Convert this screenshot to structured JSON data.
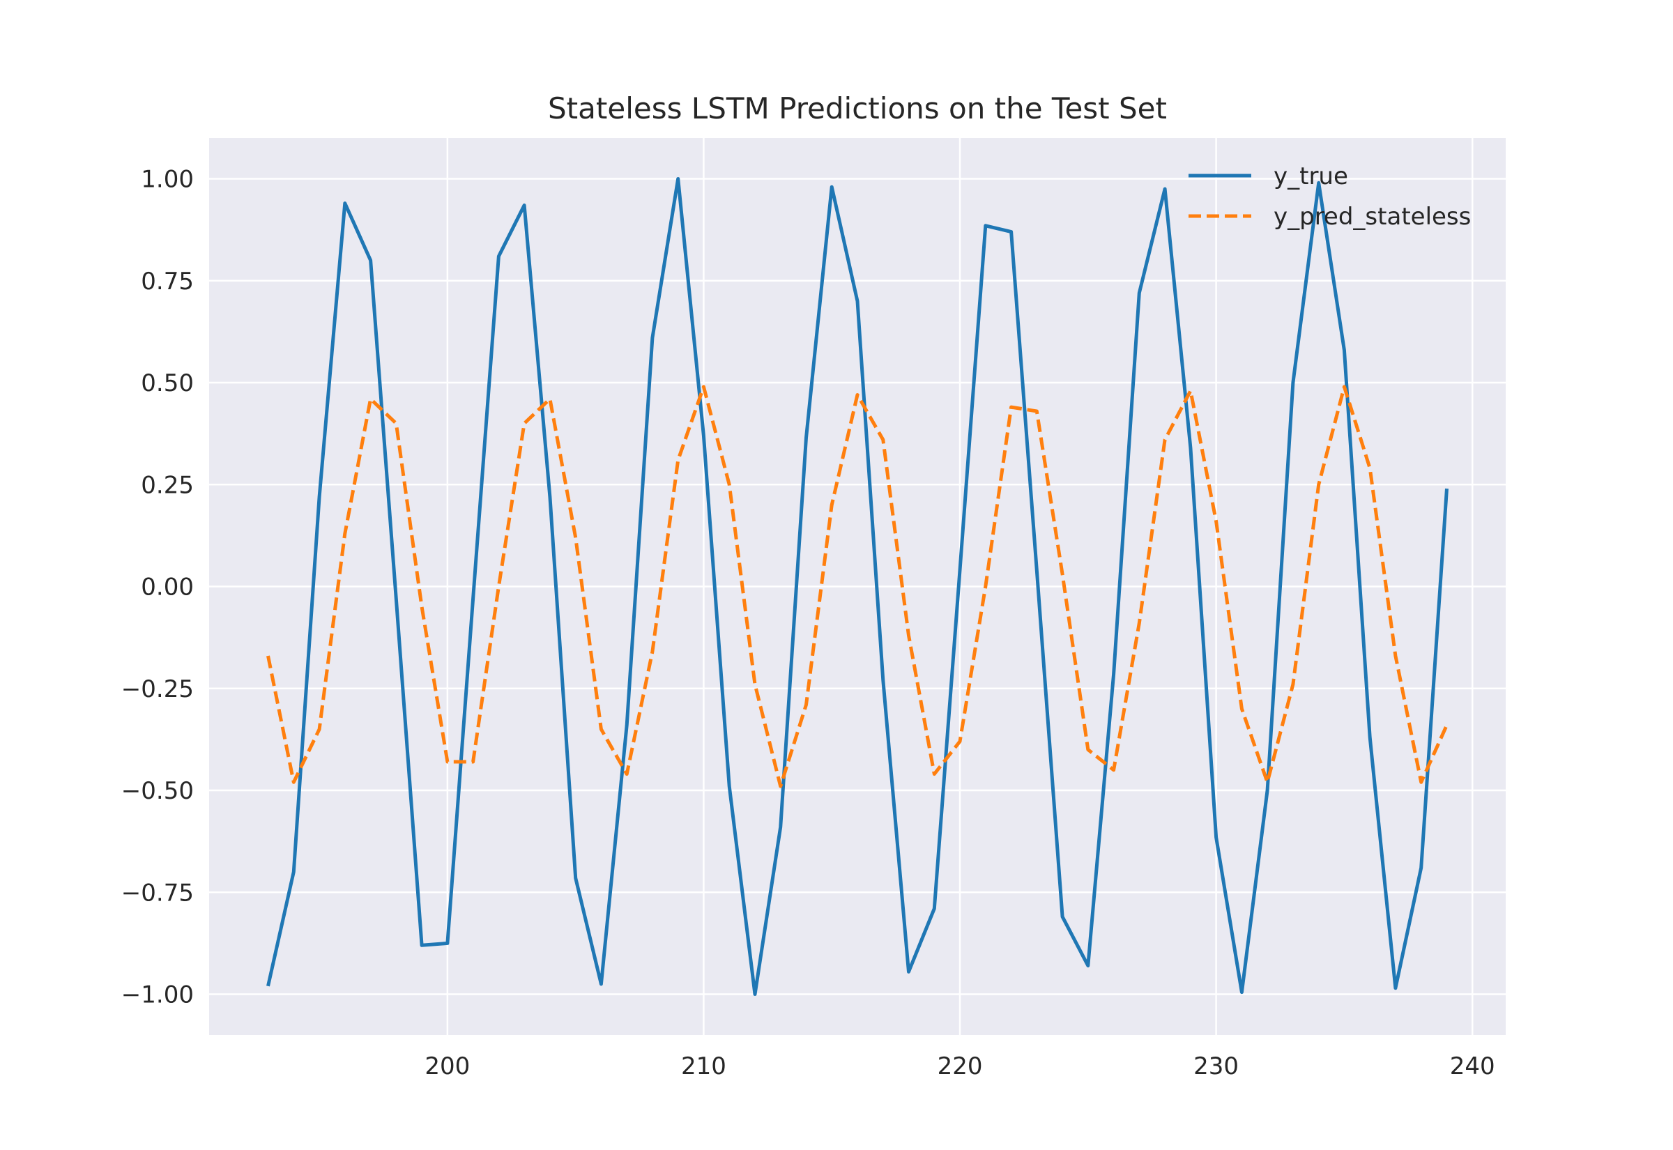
{
  "chart_data": {
    "type": "line",
    "title": "Stateless LSTM Predictions on the Test Set",
    "xlabel": "",
    "ylabel": "",
    "xlim": [
      190.7,
      241.3
    ],
    "ylim": [
      -1.1,
      1.1
    ],
    "x_ticks": [
      200,
      210,
      220,
      230,
      240
    ],
    "x_tick_labels": [
      "200",
      "210",
      "220",
      "230",
      "240"
    ],
    "y_ticks": [
      1.0,
      0.75,
      0.5,
      0.25,
      0.0,
      -0.25,
      -0.5,
      -0.75,
      -1.0
    ],
    "y_tick_labels": [
      "1.00",
      "0.75",
      "0.50",
      "0.25",
      "0.00",
      "−0.25",
      "−0.50",
      "−0.75",
      "−1.00"
    ],
    "grid": true,
    "legend_position": "top-right",
    "x": [
      193,
      194,
      195,
      196,
      197,
      198,
      199,
      200,
      201,
      202,
      203,
      204,
      205,
      206,
      207,
      208,
      209,
      210,
      211,
      212,
      213,
      214,
      215,
      216,
      217,
      218,
      219,
      220,
      221,
      222,
      223,
      224,
      225,
      226,
      227,
      228,
      229,
      230,
      231,
      232,
      233,
      234,
      235,
      236,
      237,
      238,
      239
    ],
    "series": [
      {
        "name": "y_true",
        "color": "#1f77b4",
        "style": "solid",
        "values": [
          -0.98,
          -0.7,
          0.22,
          0.94,
          0.8,
          -0.03,
          -0.88,
          -0.875,
          -0.03,
          0.81,
          0.935,
          0.22,
          -0.715,
          -0.975,
          -0.34,
          0.61,
          1.0,
          0.37,
          -0.49,
          -1.0,
          -0.59,
          0.365,
          0.98,
          0.7,
          -0.23,
          -0.945,
          -0.79,
          0.04,
          0.885,
          0.87,
          0.04,
          -0.81,
          -0.93,
          -0.215,
          0.72,
          0.975,
          0.34,
          -0.615,
          -0.995,
          -0.5,
          0.5,
          0.99,
          0.58,
          -0.37,
          -0.985,
          -0.69,
          0.24
        ]
      },
      {
        "name": "y_pred_stateless",
        "color": "#ff7f0e",
        "style": "dashed",
        "values": [
          -0.17,
          -0.48,
          -0.35,
          0.13,
          0.46,
          0.4,
          -0.05,
          -0.43,
          -0.43,
          0.0,
          0.4,
          0.46,
          0.12,
          -0.35,
          -0.46,
          -0.16,
          0.31,
          0.49,
          0.25,
          -0.24,
          -0.49,
          -0.29,
          0.2,
          0.47,
          0.36,
          -0.12,
          -0.46,
          -0.38,
          0.0,
          0.44,
          0.43,
          0.03,
          -0.4,
          -0.45,
          -0.09,
          0.36,
          0.48,
          0.16,
          -0.3,
          -0.48,
          -0.24,
          0.25,
          0.49,
          0.29,
          -0.17,
          -0.48,
          -0.34
        ]
      }
    ]
  }
}
